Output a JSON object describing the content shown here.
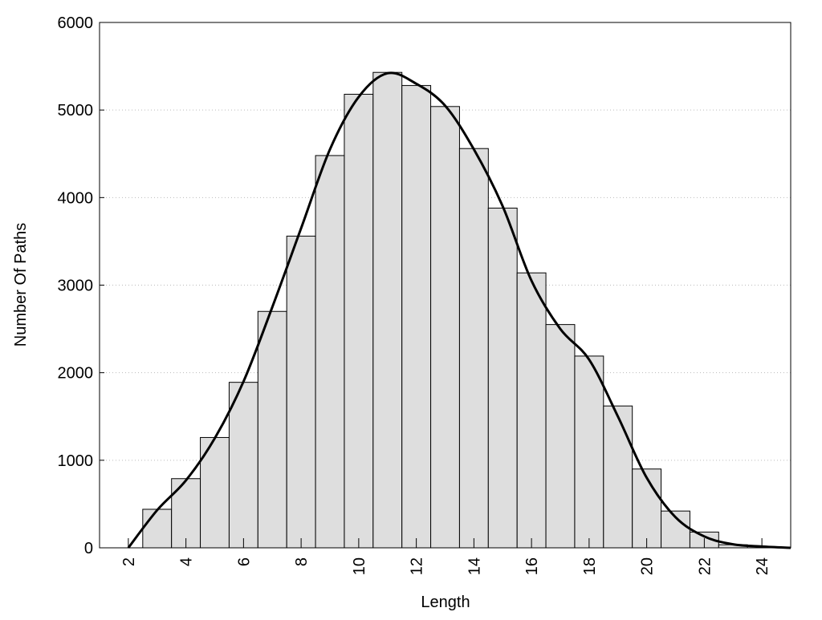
{
  "chart_data": {
    "type": "bar",
    "title": "",
    "xlabel": "Length",
    "ylabel": "Number Of Paths",
    "xlim": [
      1,
      25
    ],
    "ylim": [
      0,
      6000
    ],
    "xticks": [
      2,
      4,
      6,
      8,
      10,
      12,
      14,
      16,
      18,
      20,
      22,
      24
    ],
    "yticks": [
      0,
      1000,
      2000,
      3000,
      4000,
      5000,
      6000
    ],
    "grid": "horizontal dotted",
    "bar_color": "#dedede",
    "bar_edge_color": "#000000",
    "categories": [
      3,
      4,
      5,
      6,
      7,
      8,
      9,
      10,
      11,
      12,
      13,
      14,
      15,
      16,
      17,
      18,
      19,
      20,
      21,
      22,
      23
    ],
    "values": [
      440,
      790,
      1260,
      1890,
      2700,
      3560,
      4480,
      5180,
      5430,
      5280,
      5040,
      4560,
      3880,
      3140,
      2550,
      2190,
      1620,
      900,
      420,
      180,
      35
    ],
    "curve": {
      "type": "line",
      "color": "#000000",
      "x": [
        2,
        3,
        4,
        5,
        6,
        7,
        8,
        9,
        10,
        11,
        12,
        13,
        14,
        15,
        16,
        17,
        18,
        19,
        20,
        21,
        22,
        23,
        24,
        25
      ],
      "y": [
        0,
        430,
        770,
        1250,
        1900,
        2750,
        3650,
        4550,
        5150,
        5420,
        5300,
        5050,
        4550,
        3900,
        3050,
        2500,
        2150,
        1500,
        800,
        350,
        130,
        40,
        15,
        0
      ]
    }
  }
}
